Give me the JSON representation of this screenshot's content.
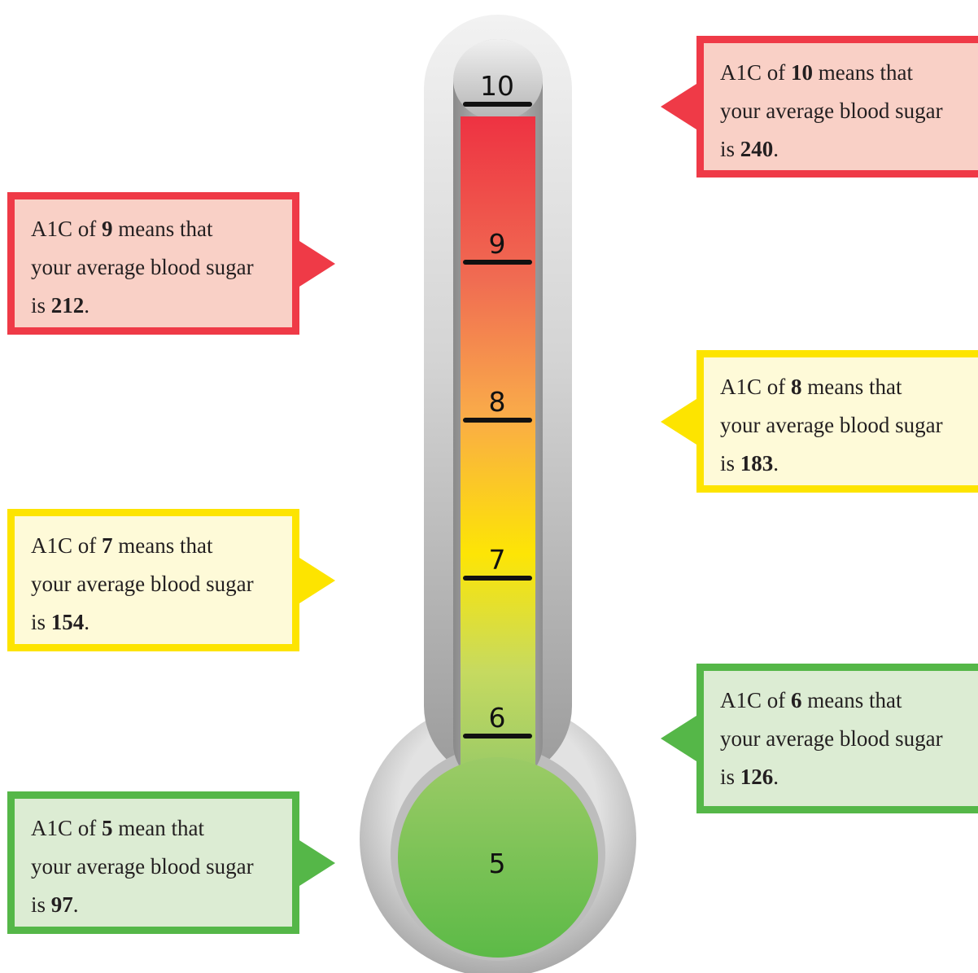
{
  "colors": {
    "red_border": "#ef3a47",
    "red_fill": "#f9d0c6",
    "yellow_border": "#fde400",
    "yellow_fill": "#fefad8",
    "green_border": "#55b748",
    "green_fill": "#dcecd3"
  },
  "scale": {
    "ticks": [
      "10",
      "9",
      "8",
      "7",
      "6"
    ],
    "bulb_label": "5"
  },
  "callouts": [
    {
      "id": "a1c-10",
      "color": "red",
      "pre": "A1C of ",
      "a1c": "10",
      "mid": " means that",
      "line2": "your average blood sugar",
      "pre3": "is ",
      "sugar": "240",
      "post3": "."
    },
    {
      "id": "a1c-9",
      "color": "red",
      "pre": "A1C of ",
      "a1c": "9",
      "mid": " means that",
      "line2": "your average blood sugar",
      "pre3": "is ",
      "sugar": "212",
      "post3": "."
    },
    {
      "id": "a1c-8",
      "color": "yellow",
      "pre": "A1C of ",
      "a1c": "8",
      "mid": " means that",
      "line2": "your average blood sugar",
      "pre3": "is ",
      "sugar": "183",
      "post3": "."
    },
    {
      "id": "a1c-7",
      "color": "yellow",
      "pre": "A1C of ",
      "a1c": "7",
      "mid": " means that",
      "line2": "your average blood sugar",
      "pre3": "is ",
      "sugar": "154",
      "post3": "."
    },
    {
      "id": "a1c-6",
      "color": "green",
      "pre": "A1C of ",
      "a1c": "6",
      "mid": " means that",
      "line2": "your average blood sugar",
      "pre3": "is ",
      "sugar": "126",
      "post3": "."
    },
    {
      "id": "a1c-5",
      "color": "green",
      "pre": "A1C of ",
      "a1c": "5",
      "mid": " mean that",
      "line2": "your average blood sugar",
      "pre3": "is ",
      "sugar": "97",
      "post3": "."
    }
  ]
}
